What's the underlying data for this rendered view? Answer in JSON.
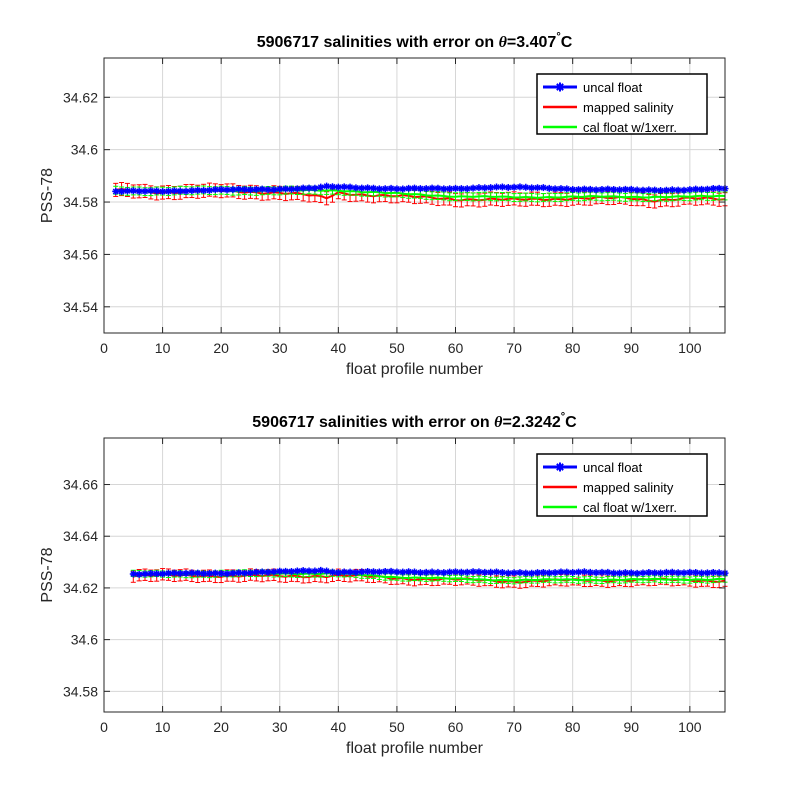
{
  "chart_data": [
    {
      "type": "line",
      "title_prefix": "5906717 salinities with error on ",
      "theta_symbol": "θ",
      "title_value": "=3.407",
      "degree_symbol": "°",
      "title_unit": "C",
      "xlabel": "float profile number",
      "ylabel": "PSS-78",
      "xlim": [
        0,
        106
      ],
      "ylim": [
        34.53,
        34.635
      ],
      "xticks": [
        0,
        10,
        20,
        30,
        40,
        50,
        60,
        70,
        80,
        90,
        100
      ],
      "xtick_labels": [
        "0",
        "10",
        "20",
        "30",
        "40",
        "50",
        "60",
        "70",
        "80",
        "90",
        "100"
      ],
      "yticks": [
        34.54,
        34.56,
        34.58,
        34.6,
        34.62
      ],
      "ytick_labels": [
        "34.54",
        "34.56",
        "34.58",
        "34.6",
        "34.62"
      ],
      "grid": true,
      "legend": "top-right",
      "x_range": [
        2,
        106
      ],
      "series": [
        {
          "name": "uncal float",
          "color": "#0000ff",
          "x": [
            2,
            10,
            20,
            30,
            36,
            38,
            40,
            50,
            60,
            66,
            70,
            80,
            90,
            93,
            100,
            106
          ],
          "values": [
            34.584,
            34.5842,
            34.5846,
            34.585,
            34.5853,
            34.5858,
            34.5857,
            34.5851,
            34.5851,
            34.5857,
            34.5856,
            34.585,
            34.5846,
            34.5845,
            34.5848,
            34.5851
          ]
        },
        {
          "name": "mapped salinity",
          "color": "#ff0000",
          "x": [
            2,
            10,
            20,
            30,
            34,
            38,
            40,
            50,
            60,
            70,
            80,
            90,
            93,
            100,
            106
          ],
          "values": [
            34.5845,
            34.5838,
            34.5842,
            34.5836,
            34.5828,
            34.5815,
            34.5835,
            34.5822,
            34.5812,
            34.5808,
            34.5815,
            34.5814,
            34.5807,
            34.5815,
            34.5808
          ],
          "error": 0.0025
        },
        {
          "name": "cal float w/1xerr.",
          "color": "#00ff00",
          "x": [
            2,
            10,
            20,
            30,
            40,
            50,
            60,
            70,
            80,
            90,
            100,
            106
          ],
          "values": [
            34.5843,
            34.5842,
            34.5844,
            34.5843,
            34.5845,
            34.5832,
            34.5822,
            34.5818,
            34.582,
            34.582,
            34.582,
            34.5823
          ],
          "error": 0.0015
        }
      ]
    },
    {
      "type": "line",
      "title_prefix": "5906717 salinities with error on ",
      "theta_symbol": "θ",
      "title_value": "=2.3242",
      "degree_symbol": "°",
      "title_unit": "C",
      "xlabel": "float profile number",
      "ylabel": "PSS-78",
      "xlim": [
        0,
        106
      ],
      "ylim": [
        34.572,
        34.678
      ],
      "xticks": [
        0,
        10,
        20,
        30,
        40,
        50,
        60,
        70,
        80,
        90,
        100
      ],
      "xtick_labels": [
        "0",
        "10",
        "20",
        "30",
        "40",
        "50",
        "60",
        "70",
        "80",
        "90",
        "100"
      ],
      "yticks": [
        34.58,
        34.6,
        34.62,
        34.64,
        34.66
      ],
      "ytick_labels": [
        "34.58",
        "34.6",
        "34.62",
        "34.64",
        "34.66"
      ],
      "grid": true,
      "legend": "top-right",
      "x_range": [
        5,
        106
      ],
      "series": [
        {
          "name": "uncal float",
          "color": "#0000ff",
          "x": [
            5,
            10,
            20,
            30,
            37,
            40,
            50,
            60,
            70,
            80,
            90,
            100,
            106
          ],
          "values": [
            34.6255,
            34.6255,
            34.6257,
            34.6262,
            34.6268,
            34.6261,
            34.6262,
            34.6261,
            34.6259,
            34.626,
            34.6259,
            34.6258,
            34.626
          ],
          "error": 0
        },
        {
          "name": "mapped salinity",
          "color": "#ff0000",
          "x": [
            5,
            10,
            20,
            30,
            40,
            50,
            60,
            70,
            80,
            90,
            100,
            106
          ],
          "values": [
            34.6248,
            34.6247,
            34.6248,
            34.6245,
            34.6248,
            34.6238,
            34.6232,
            34.6226,
            34.6229,
            34.6231,
            34.623,
            34.6228
          ],
          "error": 0.0022
        },
        {
          "name": "cal float w/1xerr.",
          "color": "#00ff00",
          "x": [
            5,
            10,
            20,
            30,
            40,
            50,
            60,
            70,
            80,
            90,
            100,
            106
          ],
          "values": [
            34.6254,
            34.6253,
            34.6255,
            34.6256,
            34.6255,
            34.6242,
            34.6235,
            34.623,
            34.6232,
            34.6232,
            34.6233,
            34.6234
          ],
          "error": 0.0012
        }
      ]
    }
  ]
}
